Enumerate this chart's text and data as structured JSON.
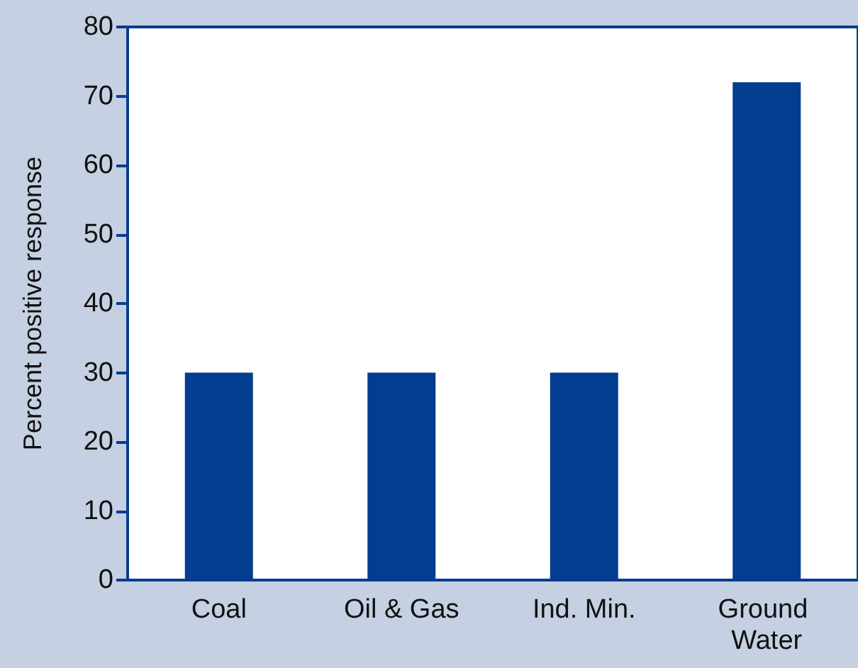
{
  "chart_data": {
    "type": "bar",
    "ylabel": "Percent positive response",
    "categories": [
      "Coal",
      "Oil & Gas",
      "Ind. Min.",
      "Ground Water"
    ],
    "values": [
      30,
      30,
      30,
      72
    ],
    "color": "#033d8f",
    "ylim": [
      0,
      80
    ],
    "yticks": [
      0,
      10,
      20,
      30,
      40,
      50,
      60,
      70,
      80
    ],
    "grid": false
  }
}
